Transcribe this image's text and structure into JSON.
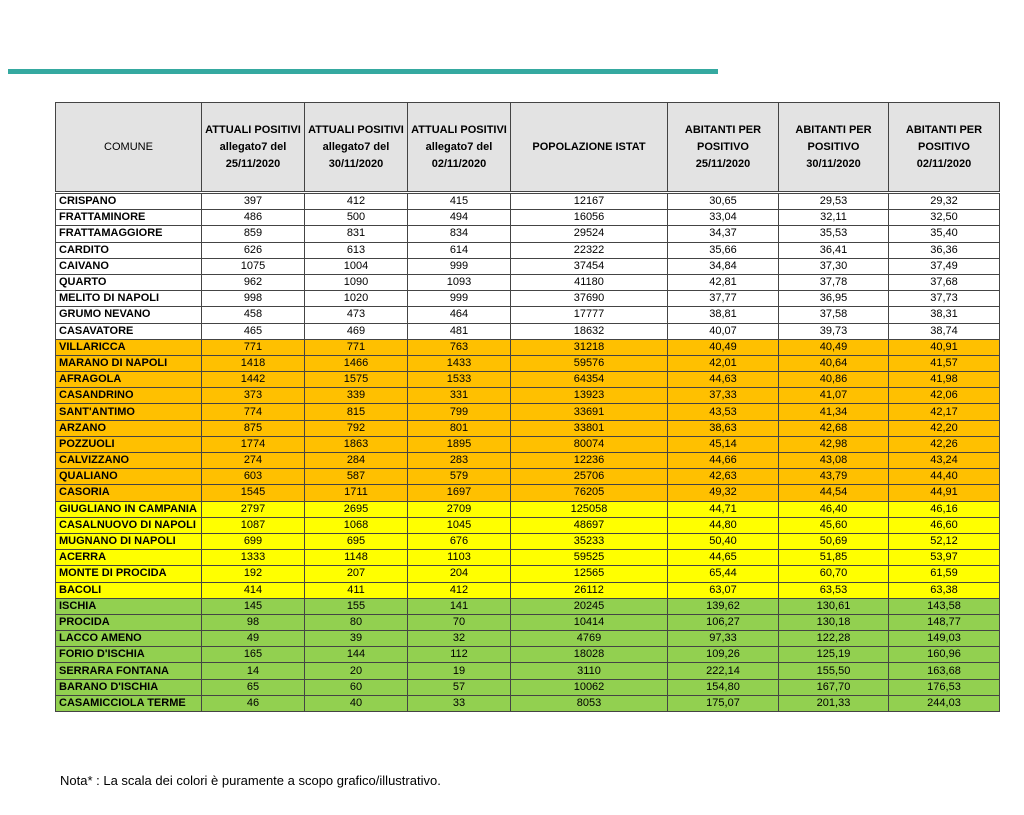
{
  "table": {
    "header": [
      [
        "COMUNE"
      ],
      [
        "ATTUALI POSITIVI",
        "allegato7 del",
        "25/11/2020"
      ],
      [
        "ATTUALI POSITIVI",
        "allegato7 del",
        "30/11/2020"
      ],
      [
        "ATTUALI POSITIVI",
        "allegato7 del",
        "02/11/2020"
      ],
      [
        "POPOLAZIONE ISTAT"
      ],
      [
        "ABITANTI PER",
        "POSITIVO",
        "25/11/2020"
      ],
      [
        "ABITANTI PER",
        "POSITIVO",
        "30/11/2020"
      ],
      [
        "ABITANTI PER",
        "POSITIVO",
        "02/11/2020"
      ]
    ],
    "rows": [
      [
        "CRISPANO",
        "397",
        "412",
        "415",
        "12167",
        "30,65",
        "29,53",
        "29,32"
      ],
      [
        "FRATTAMINORE",
        "486",
        "500",
        "494",
        "16056",
        "33,04",
        "32,11",
        "32,50"
      ],
      [
        "FRATTAMAGGIORE",
        "859",
        "831",
        "834",
        "29524",
        "34,37",
        "35,53",
        "35,40"
      ],
      [
        "CARDITO",
        "626",
        "613",
        "614",
        "22322",
        "35,66",
        "36,41",
        "36,36"
      ],
      [
        "CAIVANO",
        "1075",
        "1004",
        "999",
        "37454",
        "34,84",
        "37,30",
        "37,49"
      ],
      [
        "QUARTO",
        "962",
        "1090",
        "1093",
        "41180",
        "42,81",
        "37,78",
        "37,68"
      ],
      [
        "MELITO DI NAPOLI",
        "998",
        "1020",
        "999",
        "37690",
        "37,77",
        "36,95",
        "37,73"
      ],
      [
        "GRUMO NEVANO",
        "458",
        "473",
        "464",
        "17777",
        "38,81",
        "37,58",
        "38,31"
      ],
      [
        "CASAVATORE",
        "465",
        "469",
        "481",
        "18632",
        "40,07",
        "39,73",
        "38,74"
      ],
      [
        "VILLARICCA",
        "771",
        "771",
        "763",
        "31218",
        "40,49",
        "40,49",
        "40,91"
      ],
      [
        "MARANO DI NAPOLI",
        "1418",
        "1466",
        "1433",
        "59576",
        "42,01",
        "40,64",
        "41,57"
      ],
      [
        "AFRAGOLA",
        "1442",
        "1575",
        "1533",
        "64354",
        "44,63",
        "40,86",
        "41,98"
      ],
      [
        "CASANDRINO",
        "373",
        "339",
        "331",
        "13923",
        "37,33",
        "41,07",
        "42,06"
      ],
      [
        "SANT'ANTIMO",
        "774",
        "815",
        "799",
        "33691",
        "43,53",
        "41,34",
        "42,17"
      ],
      [
        "ARZANO",
        "875",
        "792",
        "801",
        "33801",
        "38,63",
        "42,68",
        "42,20"
      ],
      [
        "POZZUOLI",
        "1774",
        "1863",
        "1895",
        "80074",
        "45,14",
        "42,98",
        "42,26"
      ],
      [
        "CALVIZZANO",
        "274",
        "284",
        "283",
        "12236",
        "44,66",
        "43,08",
        "43,24"
      ],
      [
        "QUALIANO",
        "603",
        "587",
        "579",
        "25706",
        "42,63",
        "43,79",
        "44,40"
      ],
      [
        "CASORIA",
        "1545",
        "1711",
        "1697",
        "76205",
        "49,32",
        "44,54",
        "44,91"
      ],
      [
        "GIUGLIANO IN CAMPANIA",
        "2797",
        "2695",
        "2709",
        "125058",
        "44,71",
        "46,40",
        "46,16"
      ],
      [
        "CASALNUOVO DI NAPOLI",
        "1087",
        "1068",
        "1045",
        "48697",
        "44,80",
        "45,60",
        "46,60"
      ],
      [
        "MUGNANO DI NAPOLI",
        "699",
        "695",
        "676",
        "35233",
        "50,40",
        "50,69",
        "52,12"
      ],
      [
        "ACERRA",
        "1333",
        "1148",
        "1103",
        "59525",
        "44,65",
        "51,85",
        "53,97"
      ],
      [
        "MONTE DI PROCIDA",
        "192",
        "207",
        "204",
        "12565",
        "65,44",
        "60,70",
        "61,59"
      ],
      [
        "BACOLI",
        "414",
        "411",
        "412",
        "26112",
        "63,07",
        "63,53",
        "63,38"
      ],
      [
        "ISCHIA",
        "145",
        "155",
        "141",
        "20245",
        "139,62",
        "130,61",
        "143,58"
      ],
      [
        "PROCIDA",
        "98",
        "80",
        "70",
        "10414",
        "106,27",
        "130,18",
        "148,77"
      ],
      [
        "LACCO AMENO",
        "49",
        "39",
        "32",
        "4769",
        "97,33",
        "122,28",
        "149,03"
      ],
      [
        "FORIO D'ISCHIA",
        "165",
        "144",
        "112",
        "18028",
        "109,26",
        "125,19",
        "160,96"
      ],
      [
        "SERRARA FONTANA",
        "14",
        "20",
        "19",
        "3110",
        "222,14",
        "155,50",
        "163,68"
      ],
      [
        "BARANO D'ISCHIA",
        "65",
        "60",
        "57",
        "10062",
        "154,80",
        "167,70",
        "176,53"
      ],
      [
        "CASAMICCIOLA TERME",
        "46",
        "40",
        "33",
        "8053",
        "175,07",
        "201,33",
        "244,03"
      ]
    ],
    "row_colors": [
      "#ffffff",
      "#ffffff",
      "#ffffff",
      "#ffffff",
      "#ffffff",
      "#ffffff",
      "#ffffff",
      "#ffffff",
      "#ffffff",
      "#ffc000",
      "#ffc000",
      "#ffc000",
      "#ffc000",
      "#ffc000",
      "#ffc000",
      "#ffc000",
      "#ffc000",
      "#ffc000",
      "#ffc000",
      "#ffff00",
      "#ffff00",
      "#ffff00",
      "#ffff00",
      "#ffff00",
      "#ffff00",
      "#92d050",
      "#92d050",
      "#92d050",
      "#92d050",
      "#92d050",
      "#92d050",
      "#92d050"
    ]
  },
  "note": "Nota* : La scala dei colori è puramente a scopo grafico/illustrativo."
}
